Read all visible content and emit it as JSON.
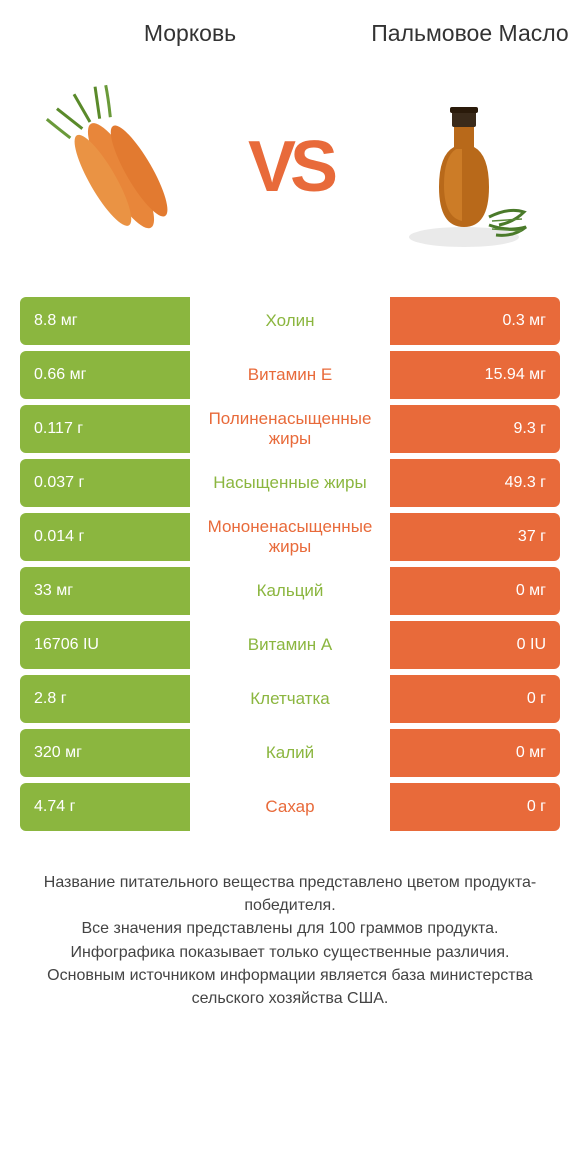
{
  "header": {
    "left_title": "Морковь",
    "right_title": "Пальмовое масло",
    "vs": "VS"
  },
  "colors": {
    "green": "#8bb63f",
    "orange": "#e86a3a",
    "background": "#ffffff",
    "text": "#333333",
    "footer_text": "#444444"
  },
  "typography": {
    "title_fontsize": 23,
    "vs_fontsize": 72,
    "row_value_fontsize": 16,
    "row_label_fontsize": 17,
    "footer_fontsize": 16
  },
  "rows": [
    {
      "left": "8.8 мг",
      "label": "Холин",
      "right": "0.3 мг",
      "winner": "left"
    },
    {
      "left": "0.66 мг",
      "label": "Витамин E",
      "right": "15.94 мг",
      "winner": "right"
    },
    {
      "left": "0.117 г",
      "label": "Полиненасыщенные жиры",
      "right": "9.3 г",
      "winner": "right"
    },
    {
      "left": "0.037 г",
      "label": "Насыщенные жиры",
      "right": "49.3 г",
      "winner": "left"
    },
    {
      "left": "0.014 г",
      "label": "Мононенасыщенные жиры",
      "right": "37 г",
      "winner": "right"
    },
    {
      "left": "33 мг",
      "label": "Кальций",
      "right": "0 мг",
      "winner": "left"
    },
    {
      "left": "16706 IU",
      "label": "Витамин A",
      "right": "0 IU",
      "winner": "left"
    },
    {
      "left": "2.8 г",
      "label": "Клетчатка",
      "right": "0 г",
      "winner": "left"
    },
    {
      "left": "320 мг",
      "label": "Калий",
      "right": "0 мг",
      "winner": "left"
    },
    {
      "left": "4.74 г",
      "label": "Сахар",
      "right": "0 г",
      "winner": "right"
    }
  ],
  "footer": {
    "line1": "Название питательного вещества представлено цветом продукта-победителя.",
    "line2": "Все значения представлены для 100 граммов продукта.",
    "line3": "Инфографика показывает только существенные различия.",
    "line4": "Основным источником информации является база министерства сельского хозяйства США."
  }
}
